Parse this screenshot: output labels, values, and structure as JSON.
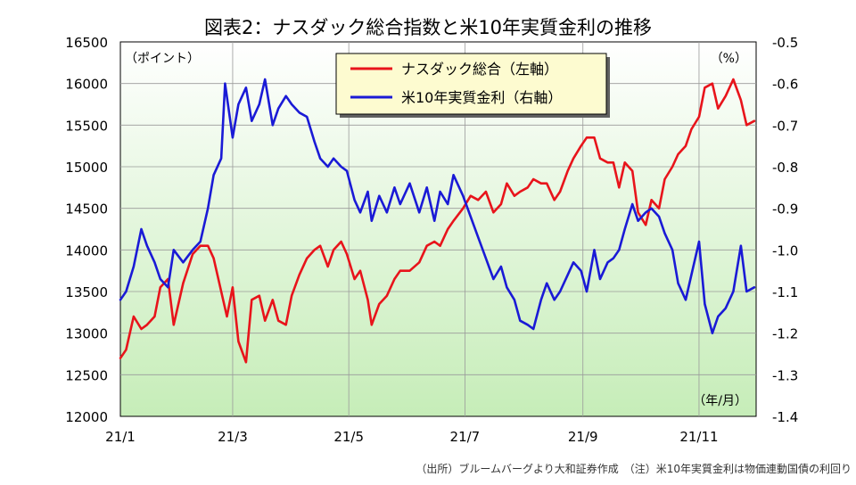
{
  "chart_data": {
    "type": "line",
    "title": "図表2：ナスダック総合指数と米10年実質金利の推移",
    "left_unit": "（ポイント）",
    "right_unit": "（%）",
    "x_unit": "（年/月）",
    "left_axis": {
      "min": 12000,
      "max": 16500,
      "ticks": [
        12000,
        12500,
        13000,
        13500,
        14000,
        14500,
        15000,
        15500,
        16000,
        16500
      ]
    },
    "right_axis": {
      "min": -1.4,
      "max": -0.5,
      "ticks": [
        -1.4,
        -1.3,
        -1.2,
        -1.1,
        -1.0,
        -0.9,
        -0.8,
        -0.7,
        -0.6,
        -0.5
      ]
    },
    "x_domain": [
      "2021-01-01",
      "2021-12-01"
    ],
    "x_ticks": [
      {
        "date": "2021-01-01",
        "label": "21/1"
      },
      {
        "date": "2021-03-01",
        "label": "21/3"
      },
      {
        "date": "2021-05-01",
        "label": "21/5"
      },
      {
        "date": "2021-07-01",
        "label": "21/7"
      },
      {
        "date": "2021-09-01",
        "label": "21/9"
      },
      {
        "date": "2021-11-01",
        "label": "21/11"
      }
    ],
    "legend": {
      "placement": "top-center"
    },
    "series": [
      {
        "name": "ナスダック総合（左軸）",
        "axis": "left",
        "color": "#e8141b",
        "points": [
          [
            "2021-01-01",
            12700
          ],
          [
            "2021-01-04",
            12800
          ],
          [
            "2021-01-08",
            13200
          ],
          [
            "2021-01-12",
            13050
          ],
          [
            "2021-01-15",
            13100
          ],
          [
            "2021-01-19",
            13200
          ],
          [
            "2021-01-22",
            13550
          ],
          [
            "2021-01-26",
            13650
          ],
          [
            "2021-01-29",
            13100
          ],
          [
            "2021-02-03",
            13600
          ],
          [
            "2021-02-08",
            13950
          ],
          [
            "2021-02-12",
            14050
          ],
          [
            "2021-02-16",
            14050
          ],
          [
            "2021-02-19",
            13900
          ],
          [
            "2021-02-23",
            13500
          ],
          [
            "2021-02-26",
            13200
          ],
          [
            "2021-03-01",
            13550
          ],
          [
            "2021-03-04",
            12900
          ],
          [
            "2021-03-08",
            12650
          ],
          [
            "2021-03-11",
            13400
          ],
          [
            "2021-03-15",
            13450
          ],
          [
            "2021-03-18",
            13150
          ],
          [
            "2021-03-22",
            13400
          ],
          [
            "2021-03-25",
            13150
          ],
          [
            "2021-03-29",
            13100
          ],
          [
            "2021-04-01",
            13450
          ],
          [
            "2021-04-05",
            13700
          ],
          [
            "2021-04-09",
            13900
          ],
          [
            "2021-04-13",
            14000
          ],
          [
            "2021-04-16",
            14050
          ],
          [
            "2021-04-20",
            13800
          ],
          [
            "2021-04-23",
            14000
          ],
          [
            "2021-04-27",
            14100
          ],
          [
            "2021-04-30",
            13950
          ],
          [
            "2021-05-04",
            13650
          ],
          [
            "2021-05-07",
            13750
          ],
          [
            "2021-05-11",
            13400
          ],
          [
            "2021-05-13",
            13100
          ],
          [
            "2021-05-17",
            13350
          ],
          [
            "2021-05-21",
            13450
          ],
          [
            "2021-05-25",
            13650
          ],
          [
            "2021-05-28",
            13750
          ],
          [
            "2021-06-02",
            13750
          ],
          [
            "2021-06-07",
            13850
          ],
          [
            "2021-06-11",
            14050
          ],
          [
            "2021-06-15",
            14100
          ],
          [
            "2021-06-18",
            14050
          ],
          [
            "2021-06-22",
            14250
          ],
          [
            "2021-06-25",
            14350
          ],
          [
            "2021-06-30",
            14500
          ],
          [
            "2021-07-04",
            14650
          ],
          [
            "2021-07-08",
            14600
          ],
          [
            "2021-07-12",
            14700
          ],
          [
            "2021-07-16",
            14450
          ],
          [
            "2021-07-20",
            14550
          ],
          [
            "2021-07-23",
            14800
          ],
          [
            "2021-07-27",
            14650
          ],
          [
            "2021-07-30",
            14700
          ],
          [
            "2021-08-03",
            14750
          ],
          [
            "2021-08-06",
            14850
          ],
          [
            "2021-08-10",
            14800
          ],
          [
            "2021-08-13",
            14800
          ],
          [
            "2021-08-17",
            14600
          ],
          [
            "2021-08-20",
            14700
          ],
          [
            "2021-08-24",
            14950
          ],
          [
            "2021-08-27",
            15100
          ],
          [
            "2021-08-31",
            15250
          ],
          [
            "2021-09-03",
            15350
          ],
          [
            "2021-09-07",
            15350
          ],
          [
            "2021-09-10",
            15100
          ],
          [
            "2021-09-14",
            15050
          ],
          [
            "2021-09-17",
            15050
          ],
          [
            "2021-09-20",
            14750
          ],
          [
            "2021-09-23",
            15050
          ],
          [
            "2021-09-27",
            14950
          ],
          [
            "2021-09-30",
            14450
          ],
          [
            "2021-10-04",
            14300
          ],
          [
            "2021-10-07",
            14600
          ],
          [
            "2021-10-11",
            14500
          ],
          [
            "2021-10-14",
            14850
          ],
          [
            "2021-10-18",
            15000
          ],
          [
            "2021-10-21",
            15150
          ],
          [
            "2021-10-25",
            15250
          ],
          [
            "2021-10-28",
            15450
          ],
          [
            "2021-11-01",
            15600
          ],
          [
            "2021-11-04",
            15950
          ],
          [
            "2021-11-08",
            16000
          ],
          [
            "2021-11-11",
            15700
          ],
          [
            "2021-11-15",
            15850
          ],
          [
            "2021-11-19",
            16050
          ],
          [
            "2021-11-23",
            15800
          ],
          [
            "2021-11-26",
            15500
          ],
          [
            "2021-11-30",
            15550
          ]
        ]
      },
      {
        "name": "米10年実質金利（右軸）",
        "axis": "right",
        "color": "#1a1ad6",
        "points": [
          [
            "2021-01-01",
            -1.12
          ],
          [
            "2021-01-04",
            -1.1
          ],
          [
            "2021-01-08",
            -1.04
          ],
          [
            "2021-01-12",
            -0.95
          ],
          [
            "2021-01-15",
            -0.99
          ],
          [
            "2021-01-19",
            -1.03
          ],
          [
            "2021-01-22",
            -1.07
          ],
          [
            "2021-01-26",
            -1.09
          ],
          [
            "2021-01-29",
            -1.0
          ],
          [
            "2021-02-03",
            -1.03
          ],
          [
            "2021-02-08",
            -1.0
          ],
          [
            "2021-02-12",
            -0.98
          ],
          [
            "2021-02-16",
            -0.9
          ],
          [
            "2021-02-19",
            -0.82
          ],
          [
            "2021-02-23",
            -0.78
          ],
          [
            "2021-02-25",
            -0.6
          ],
          [
            "2021-03-01",
            -0.73
          ],
          [
            "2021-03-04",
            -0.65
          ],
          [
            "2021-03-08",
            -0.61
          ],
          [
            "2021-03-11",
            -0.69
          ],
          [
            "2021-03-15",
            -0.65
          ],
          [
            "2021-03-18",
            -0.59
          ],
          [
            "2021-03-22",
            -0.7
          ],
          [
            "2021-03-25",
            -0.66
          ],
          [
            "2021-03-29",
            -0.63
          ],
          [
            "2021-04-01",
            -0.65
          ],
          [
            "2021-04-05",
            -0.67
          ],
          [
            "2021-04-09",
            -0.68
          ],
          [
            "2021-04-13",
            -0.74
          ],
          [
            "2021-04-16",
            -0.78
          ],
          [
            "2021-04-20",
            -0.8
          ],
          [
            "2021-04-23",
            -0.78
          ],
          [
            "2021-04-27",
            -0.8
          ],
          [
            "2021-04-30",
            -0.81
          ],
          [
            "2021-05-04",
            -0.88
          ],
          [
            "2021-05-07",
            -0.91
          ],
          [
            "2021-05-11",
            -0.86
          ],
          [
            "2021-05-13",
            -0.93
          ],
          [
            "2021-05-17",
            -0.87
          ],
          [
            "2021-05-21",
            -0.91
          ],
          [
            "2021-05-25",
            -0.85
          ],
          [
            "2021-05-28",
            -0.89
          ],
          [
            "2021-06-02",
            -0.84
          ],
          [
            "2021-06-07",
            -0.91
          ],
          [
            "2021-06-11",
            -0.85
          ],
          [
            "2021-06-15",
            -0.93
          ],
          [
            "2021-06-18",
            -0.86
          ],
          [
            "2021-06-22",
            -0.89
          ],
          [
            "2021-06-25",
            -0.82
          ],
          [
            "2021-06-30",
            -0.87
          ],
          [
            "2021-07-04",
            -0.92
          ],
          [
            "2021-07-08",
            -0.97
          ],
          [
            "2021-07-12",
            -1.02
          ],
          [
            "2021-07-16",
            -1.07
          ],
          [
            "2021-07-20",
            -1.04
          ],
          [
            "2021-07-23",
            -1.09
          ],
          [
            "2021-07-27",
            -1.12
          ],
          [
            "2021-07-30",
            -1.17
          ],
          [
            "2021-08-03",
            -1.18
          ],
          [
            "2021-08-06",
            -1.19
          ],
          [
            "2021-08-10",
            -1.12
          ],
          [
            "2021-08-13",
            -1.08
          ],
          [
            "2021-08-17",
            -1.12
          ],
          [
            "2021-08-20",
            -1.1
          ],
          [
            "2021-08-24",
            -1.06
          ],
          [
            "2021-08-27",
            -1.03
          ],
          [
            "2021-08-31",
            -1.05
          ],
          [
            "2021-09-03",
            -1.1
          ],
          [
            "2021-09-07",
            -1.0
          ],
          [
            "2021-09-10",
            -1.07
          ],
          [
            "2021-09-14",
            -1.03
          ],
          [
            "2021-09-17",
            -1.02
          ],
          [
            "2021-09-20",
            -1.0
          ],
          [
            "2021-09-23",
            -0.95
          ],
          [
            "2021-09-27",
            -0.89
          ],
          [
            "2021-09-30",
            -0.93
          ],
          [
            "2021-10-04",
            -0.91
          ],
          [
            "2021-10-07",
            -0.9
          ],
          [
            "2021-10-11",
            -0.92
          ],
          [
            "2021-10-14",
            -0.96
          ],
          [
            "2021-10-18",
            -1.0
          ],
          [
            "2021-10-21",
            -1.08
          ],
          [
            "2021-10-25",
            -1.12
          ],
          [
            "2021-10-28",
            -1.06
          ],
          [
            "2021-11-01",
            -0.98
          ],
          [
            "2021-11-04",
            -1.13
          ],
          [
            "2021-11-08",
            -1.2
          ],
          [
            "2021-11-11",
            -1.16
          ],
          [
            "2021-11-15",
            -1.14
          ],
          [
            "2021-11-19",
            -1.1
          ],
          [
            "2021-11-23",
            -0.99
          ],
          [
            "2021-11-26",
            -1.1
          ],
          [
            "2021-11-30",
            -1.09
          ]
        ]
      }
    ],
    "source_note": "（出所）ブルームバーグより大和証券作成　（注）米10年実質金利は物価連動国債の利回り"
  }
}
